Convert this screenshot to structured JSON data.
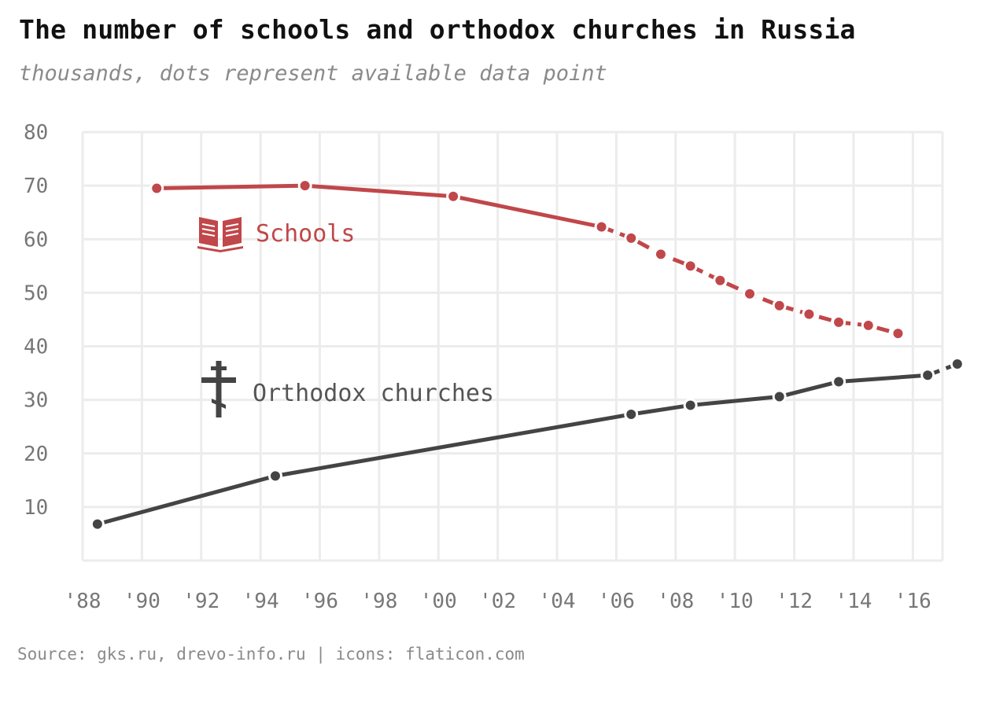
{
  "title": "The number of schools and orthodox churches in Russia",
  "subtitle": "thousands, dots represent available data point",
  "source": "Source: gks.ru, drevo-info.ru | icons: flaticon.com",
  "chart_data": {
    "type": "line",
    "title": "The number of schools and orthodox churches in Russia",
    "subtitle": "thousands, dots represent available data point",
    "xlabel": "",
    "ylabel": "",
    "xlim": [
      1988,
      2017
    ],
    "ylim": [
      0,
      80
    ],
    "grid": true,
    "x_ticks": [
      1988,
      1990,
      1992,
      1994,
      1996,
      1998,
      2000,
      2002,
      2004,
      2006,
      2008,
      2010,
      2012,
      2014,
      2016
    ],
    "x_tick_labels": [
      "'88",
      "'90",
      "'92",
      "'94",
      "'96",
      "'98",
      "'00",
      "'02",
      "'04",
      "'06",
      "'08",
      "'10",
      "'12",
      "'14",
      "'16"
    ],
    "y_ticks": [
      10,
      20,
      30,
      40,
      50,
      60,
      70,
      80
    ],
    "y_tick_labels": [
      "10",
      "20",
      "30",
      "40",
      "50",
      "60",
      "70",
      "80"
    ],
    "series": [
      {
        "name": "Schools",
        "color": "#c0474a",
        "icon": "book-icon",
        "points": [
          {
            "x": 1990.5,
            "y": 69.5
          },
          {
            "x": 1995.5,
            "y": 70.0
          },
          {
            "x": 2000.5,
            "y": 68.0
          },
          {
            "x": 2005.5,
            "y": 62.3
          },
          {
            "x": 2006.5,
            "y": 60.2
          },
          {
            "x": 2007.5,
            "y": 57.2
          },
          {
            "x": 2008.5,
            "y": 55.0
          },
          {
            "x": 2009.5,
            "y": 52.3
          },
          {
            "x": 2010.5,
            "y": 49.8
          },
          {
            "x": 2011.5,
            "y": 47.6
          },
          {
            "x": 2012.5,
            "y": 46.0
          },
          {
            "x": 2013.5,
            "y": 44.5
          },
          {
            "x": 2014.5,
            "y": 43.9
          },
          {
            "x": 2015.5,
            "y": 42.4
          }
        ],
        "solid_until_index": 3
      },
      {
        "name": "Orthodox churches",
        "color": "#444444",
        "icon": "orthodox-cross-icon",
        "points": [
          {
            "x": 1988.5,
            "y": 6.8
          },
          {
            "x": 1994.5,
            "y": 15.8
          },
          {
            "x": 2006.5,
            "y": 27.3
          },
          {
            "x": 2008.5,
            "y": 29.0
          },
          {
            "x": 2011.5,
            "y": 30.6
          },
          {
            "x": 2013.5,
            "y": 33.4
          },
          {
            "x": 2016.5,
            "y": 34.6
          },
          {
            "x": 2017.5,
            "y": 36.7
          }
        ],
        "solid_until_index": 6
      }
    ]
  }
}
